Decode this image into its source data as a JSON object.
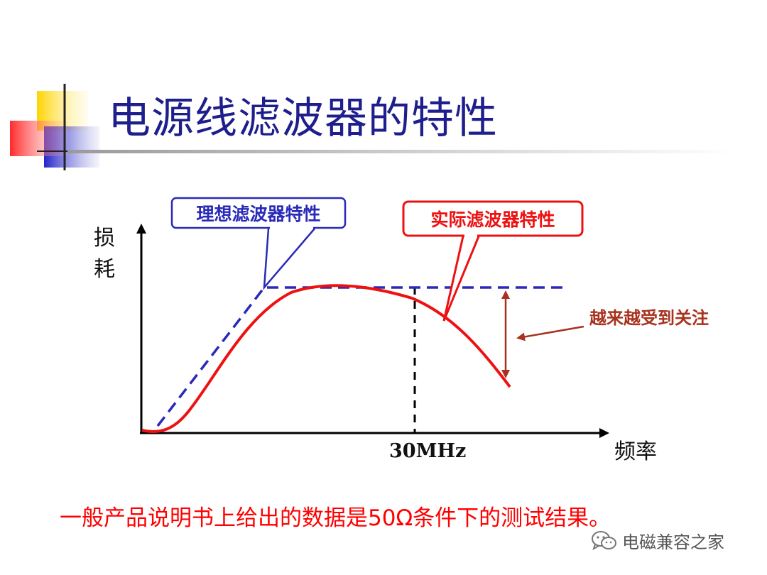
{
  "slide": {
    "title": "电源线滤波器的特性",
    "note": "一般产品说明书上给出的数据是50Ω条件下的测试结果。",
    "watermark": "电磁兼容之家"
  },
  "diagram": {
    "ideal_label": "理想滤波器特性",
    "real_label": "实际滤波器特性",
    "y_axis_label": "损耗",
    "x_axis_label": "频率",
    "frequency_marker": "30MHz",
    "annotation": "越来越受到关注",
    "colors": {
      "ideal": "#2a2ab8",
      "real": "#ee1111",
      "annotation": "#a8321e",
      "title": "#1e1e8c",
      "note": "#ff0000"
    }
  }
}
